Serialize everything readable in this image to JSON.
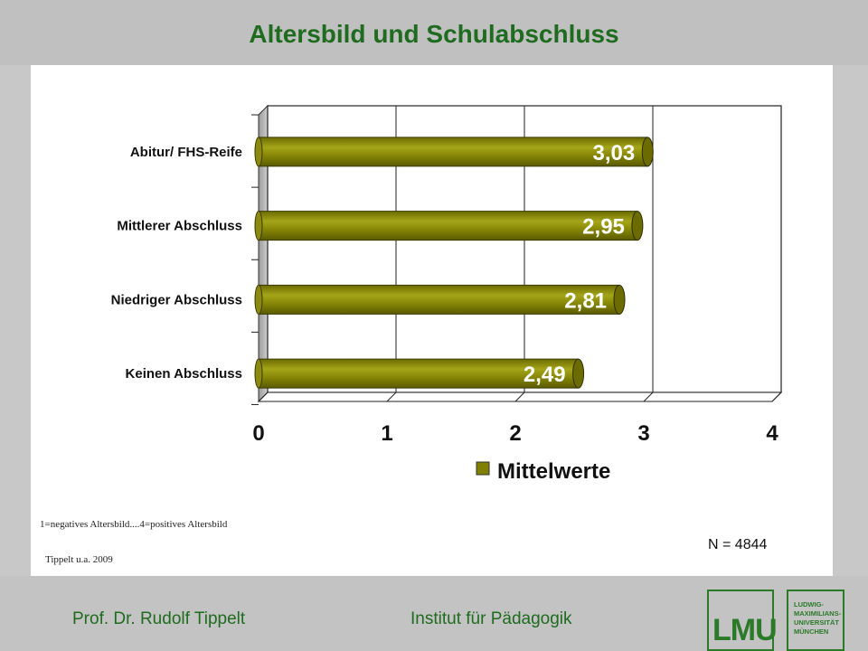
{
  "slide": {
    "title": "Altersbild und Schulabschluss"
  },
  "chart_data": {
    "type": "bar",
    "orientation": "horizontal",
    "categories": [
      "Abitur/ FHS-Reife",
      "Mittlerer Abschluss",
      "Niedriger Abschluss",
      "Keinen Abschluss"
    ],
    "values": [
      3.03,
      2.95,
      2.81,
      2.49
    ],
    "value_labels": [
      "3,03",
      "2,95",
      "2,81",
      "2,49"
    ],
    "series": [
      {
        "name": "Mittelwerte",
        "values": [
          3.03,
          2.95,
          2.81,
          2.49
        ]
      }
    ],
    "xlim": [
      0,
      4
    ],
    "x_ticks": [
      "0",
      "1",
      "2",
      "3",
      "4"
    ],
    "grid": "vertical",
    "legend": "bottom-right",
    "bar_color": "#7f7f00"
  },
  "notes": {
    "scale": "1=negatives Altersbild....4=positives Altersbild",
    "source": "Tippelt u.a. 2009",
    "sample_size": "N = 4844"
  },
  "footer": {
    "author": "Prof. Dr. Rudolf Tippelt",
    "institute": "Institut für Pädagogik"
  },
  "logo": {
    "mark": "LMU",
    "lines": [
      "LUDWIG-",
      "MAXIMILIANS-",
      "UNIVERSITÄT",
      "MÜNCHEN"
    ]
  }
}
